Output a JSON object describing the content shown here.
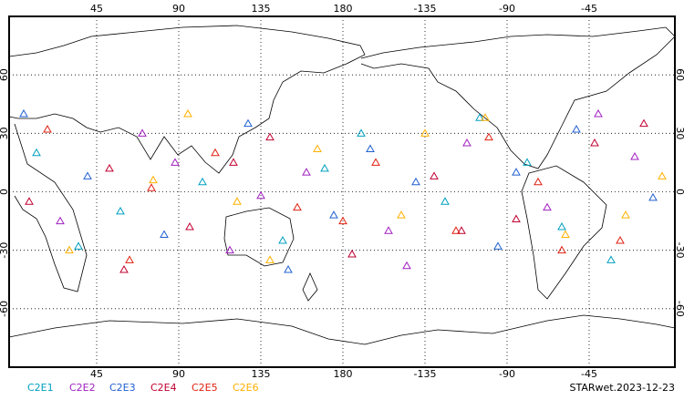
{
  "chart_data": {
    "type": "scatter",
    "title": "STARwet.2023-12-23",
    "xlim": [
      -3,
      362
    ],
    "ylim": [
      -90,
      90
    ],
    "xticks": [
      45,
      90,
      135,
      180,
      {
        "value": 225,
        "label": "-135"
      },
      {
        "value": 270,
        "label": "-90"
      },
      {
        "value": 315,
        "label": "-45"
      }
    ],
    "yticks": [
      -60,
      -30,
      0,
      30,
      60
    ],
    "grid": true,
    "marker": "triangle",
    "series": [
      {
        "name": "C2E1",
        "color": "#00a0c0",
        "lon": [
          12,
          58,
          103,
          147,
          190,
          236,
          281,
          327,
          35,
          170,
          300,
          255
        ],
        "lat": [
          20,
          -10,
          5,
          -25,
          30,
          -5,
          15,
          -35,
          -28,
          12,
          -18,
          38
        ]
      },
      {
        "name": "C2E2",
        "color": "#a020c0",
        "lon": [
          25,
          70,
          118,
          160,
          205,
          248,
          292,
          340,
          88,
          215,
          320,
          135
        ],
        "lat": [
          -15,
          30,
          -30,
          10,
          -20,
          25,
          -8,
          18,
          15,
          -38,
          40,
          -2
        ]
      },
      {
        "name": "C2E3",
        "color": "#2060d0",
        "lon": [
          40,
          82,
          128,
          175,
          220,
          265,
          308,
          350,
          5,
          195,
          150,
          275
        ],
        "lat": [
          8,
          -22,
          35,
          -12,
          5,
          -28,
          32,
          -3,
          40,
          22,
          -40,
          10
        ]
      },
      {
        "name": "C2E4",
        "color": "#c00030",
        "lon": [
          8,
          52,
          96,
          140,
          185,
          230,
          275,
          318,
          60,
          120,
          245,
          345
        ],
        "lat": [
          -5,
          12,
          -18,
          28,
          -32,
          8,
          -14,
          25,
          -40,
          15,
          -20,
          35
        ]
      },
      {
        "name": "C2E5",
        "color": "#e02010",
        "lon": [
          18,
          63,
          110,
          155,
          198,
          242,
          287,
          332,
          75,
          180,
          260,
          300
        ],
        "lat": [
          32,
          -35,
          20,
          -8,
          15,
          -20,
          5,
          -25,
          2,
          -15,
          28,
          -30
        ]
      },
      {
        "name": "C2E6",
        "color": "#ffb000",
        "lon": [
          30,
          76,
          122,
          166,
          212,
          258,
          302,
          355,
          140,
          225,
          95,
          335
        ],
        "lat": [
          -30,
          6,
          -5,
          22,
          -12,
          38,
          -22,
          8,
          -35,
          30,
          40,
          -12
        ]
      }
    ]
  }
}
